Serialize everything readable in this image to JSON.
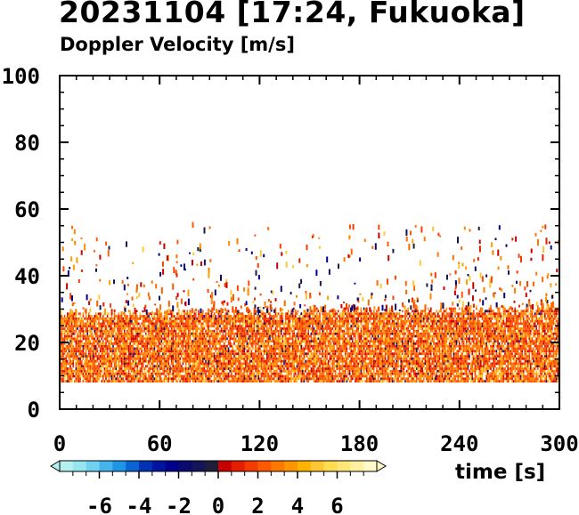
{
  "chart_data": {
    "type": "heatmap",
    "title": "20231104 [17:24, Fukuoka]",
    "subtitle": "Doppler Velocity [m/s]",
    "xlabel": "time [s]",
    "ylabel": "",
    "xlim": [
      0,
      300
    ],
    "ylim": [
      0,
      100
    ],
    "xticks": [
      "0",
      "60",
      "120",
      "180",
      "240",
      "300"
    ],
    "yticks": [
      "0",
      "20",
      "40",
      "60",
      "80",
      "100"
    ],
    "grid": false,
    "data_extent": {
      "height_min": 8,
      "dense_top_start": 28,
      "dense_top_end": 30,
      "sparse_top": 55
    },
    "colorbar": {
      "range": [
        -8,
        8
      ],
      "ticks": [
        "-6",
        "-4",
        "-2",
        "0",
        "2",
        "4",
        "6"
      ],
      "tick_values": [
        -6,
        -4,
        -2,
        0,
        2,
        4,
        6
      ],
      "extend": "both",
      "colors": [
        "#b4f0f0",
        "#96e6f0",
        "#6ed2f0",
        "#46b4eb",
        "#1e96e6",
        "#0a64d2",
        "#0032b4",
        "#0014a0",
        "#00008c",
        "#0a0a6e",
        "#14145a",
        "#1e1e3c",
        "#c80000",
        "#e61e00",
        "#f53c00",
        "#ff5a00",
        "#ff7800",
        "#ff9600",
        "#ffb400",
        "#ffc832",
        "#ffdc50",
        "#ffe678",
        "#fff0a0",
        "#fffac8"
      ]
    }
  }
}
